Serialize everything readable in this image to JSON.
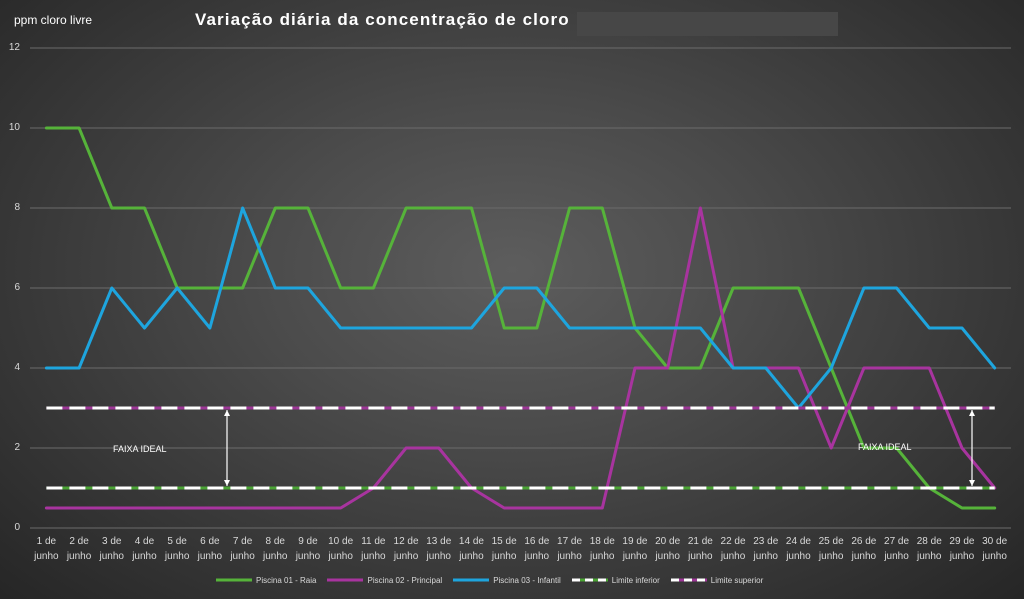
{
  "chart_data": {
    "type": "line",
    "title": "Variação diária da concentração de cloro",
    "ylabel": "ppm cloro livre",
    "ylim": [
      0,
      12
    ],
    "yticks": [
      0,
      2,
      4,
      6,
      8,
      10,
      12
    ],
    "grid": true,
    "legend_position": "bottom",
    "categories": [
      "1 de junho",
      "2 de junho",
      "3 de junho",
      "4 de junho",
      "5 de junho",
      "6 de junho",
      "7 de junho",
      "8 de junho",
      "9 de junho",
      "10 de junho",
      "11 de junho",
      "12 de junho",
      "13 de junho",
      "14 de junho",
      "15 de junho",
      "16 de junho",
      "17 de junho",
      "18 de junho",
      "19 de junho",
      "20 de junho",
      "21 de junho",
      "22 de junho",
      "23 de junho",
      "24 de junho",
      "25 de junho",
      "26 de junho",
      "27 de junho",
      "28 de junho",
      "29 de junho",
      "30 de junho"
    ],
    "series": [
      {
        "name": "Piscina 01 - Raia",
        "color": "#56b33a",
        "style": "solid",
        "values": [
          10,
          10,
          8,
          8,
          6,
          6,
          6,
          8,
          8,
          6,
          6,
          8,
          8,
          8,
          5,
          5,
          8,
          8,
          5,
          4,
          4,
          6,
          6,
          6,
          4,
          2,
          2,
          1,
          0.5,
          0.5
        ]
      },
      {
        "name": "Piscina 02 - Principal",
        "color": "#a8349f",
        "style": "solid",
        "values": [
          0.5,
          0.5,
          0.5,
          0.5,
          0.5,
          0.5,
          0.5,
          0.5,
          0.5,
          0.5,
          1,
          2,
          2,
          1,
          0.5,
          0.5,
          0.5,
          0.5,
          4,
          4,
          8,
          4,
          4,
          4,
          2,
          4,
          4,
          4,
          2,
          1
        ]
      },
      {
        "name": "Piscina 03 - Infantil",
        "color": "#1ea5de",
        "style": "solid",
        "values": [
          4,
          4,
          6,
          5,
          6,
          5,
          8,
          6,
          6,
          5,
          5,
          5,
          5,
          5,
          6,
          6,
          5,
          5,
          5,
          5,
          5,
          4,
          4,
          3,
          4,
          6,
          6,
          5,
          5,
          4
        ]
      },
      {
        "name": "Limite inferior",
        "color": "#4aa334",
        "dash_color": "#ffffff",
        "style": "dashed",
        "values": [
          1,
          1,
          1,
          1,
          1,
          1,
          1,
          1,
          1,
          1,
          1,
          1,
          1,
          1,
          1,
          1,
          1,
          1,
          1,
          1,
          1,
          1,
          1,
          1,
          1,
          1,
          1,
          1,
          1,
          1
        ]
      },
      {
        "name": "Limite superior",
        "color": "#9c3696",
        "dash_color": "#ffffff",
        "style": "dashed",
        "values": [
          3,
          3,
          3,
          3,
          3,
          3,
          3,
          3,
          3,
          3,
          3,
          3,
          3,
          3,
          3,
          3,
          3,
          3,
          3,
          3,
          3,
          3,
          3,
          3,
          3,
          3,
          3,
          3,
          3,
          3
        ]
      }
    ],
    "annotations": [
      {
        "text": "FAIXA IDEAL",
        "y_from": 1,
        "y_to": 3
      },
      {
        "text": "FAIXA IDEAL",
        "y_from": 1,
        "y_to": 3
      }
    ]
  }
}
